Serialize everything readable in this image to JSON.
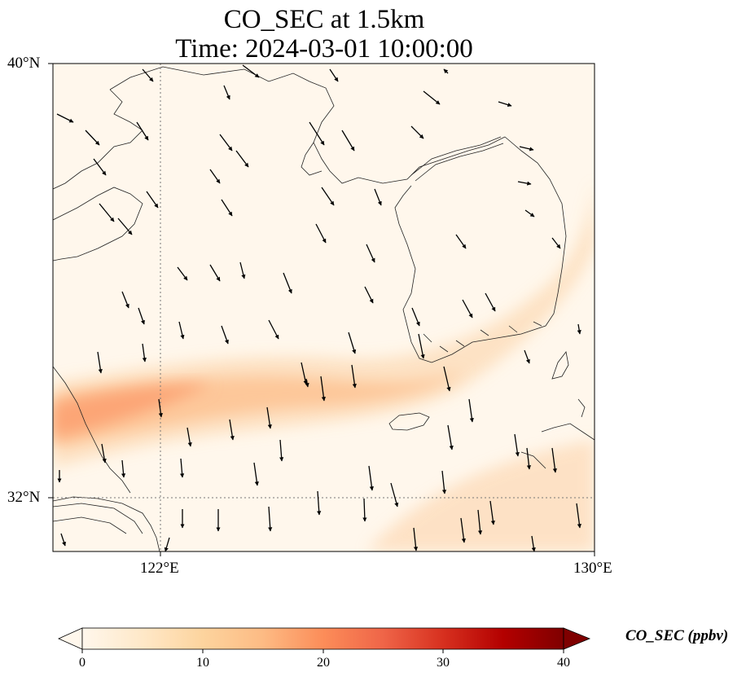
{
  "title": {
    "line1": "CO_SEC at 1.5km",
    "line2": "Time: 2024-03-01 10:00:00"
  },
  "map": {
    "lat_labels": [
      "40°N",
      "32°N"
    ],
    "lon_labels": [
      "122°E",
      "130°E"
    ],
    "extent": {
      "lon_min": 120,
      "lon_max": 130,
      "lat_min": 31,
      "lat_max": 40
    },
    "gridlines": {
      "lon": [
        122
      ],
      "lat": [
        32
      ],
      "style": "dotted"
    },
    "coastlines": true,
    "vectors": "wind"
  },
  "colorbar": {
    "label": "CO_SEC (ppbv)",
    "ticks": [
      "0",
      "10",
      "20",
      "30",
      "40"
    ],
    "range": [
      0,
      40
    ],
    "extend": "both",
    "cmap": "OrRd",
    "colors": [
      "#fff7ec",
      "#fee8c8",
      "#fdd49e",
      "#fdbb84",
      "#fc8d59",
      "#ef6548",
      "#d7301f",
      "#b30000",
      "#7f0000"
    ]
  }
}
